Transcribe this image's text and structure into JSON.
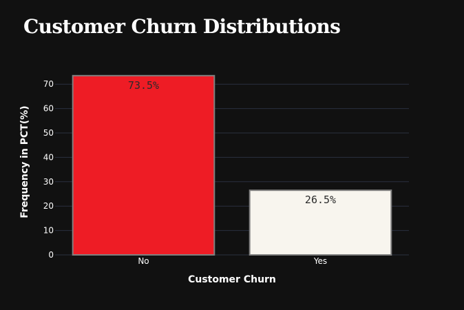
{
  "chart_data": {
    "type": "bar",
    "title": "Customer Churn Distributions",
    "xlabel": "Customer Churn",
    "ylabel": "Frequency in PCT(%)",
    "categories": [
      "No",
      "Yes"
    ],
    "values": [
      73.5,
      26.5
    ],
    "data_labels": [
      "73.5%",
      "26.5%"
    ],
    "yticks": [
      0,
      10,
      20,
      30,
      40,
      50,
      60,
      70
    ],
    "ylim": [
      0,
      77.4
    ],
    "grid": true,
    "legend": "none",
    "colors": {
      "background": "#111111",
      "grid": "#2a3140",
      "bars": [
        "#ee1c25",
        "#f8f5ee"
      ],
      "bar_outline": "#808080",
      "data_label_text": [
        "#2a2a2a",
        "#2a2a2a"
      ],
      "text": "#ffffff"
    }
  }
}
